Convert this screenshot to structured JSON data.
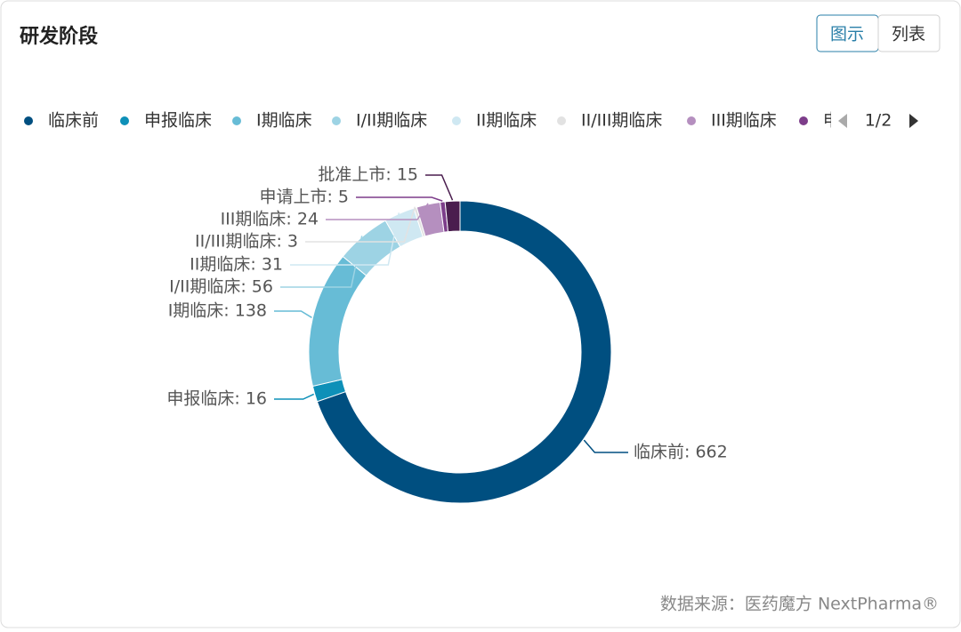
{
  "title": "研发阶段",
  "tabs": [
    "图示",
    "列表"
  ],
  "legend_page": "1/2",
  "source": "数据来源：医药魔方 NextPharma®",
  "chart_data": {
    "type": "pie",
    "categories": [
      "临床前",
      "申报临床",
      "I期临床",
      "I/II期临床",
      "II期临床",
      "II/III期临床",
      "III期临床",
      "申请上市",
      "批准上市"
    ],
    "values": [
      662,
      16,
      138,
      56,
      31,
      3,
      24,
      5,
      15
    ],
    "value_labels": [
      "临床前: 662",
      "申报临床: 16",
      "I期临床: 138",
      "I/II期临床: 56",
      "II期临床: 31",
      "II/III期临床: 3",
      "III期临床: 24",
      "申请上市: 5",
      "批准上市: 15"
    ],
    "colors": [
      "#004f80",
      "#0e90b8",
      "#67bcd6",
      "#9dd3e4",
      "#cfe8f2",
      "#e2e2e2",
      "#b58fbf",
      "#7d3d8a",
      "#4a1d4e"
    ]
  }
}
